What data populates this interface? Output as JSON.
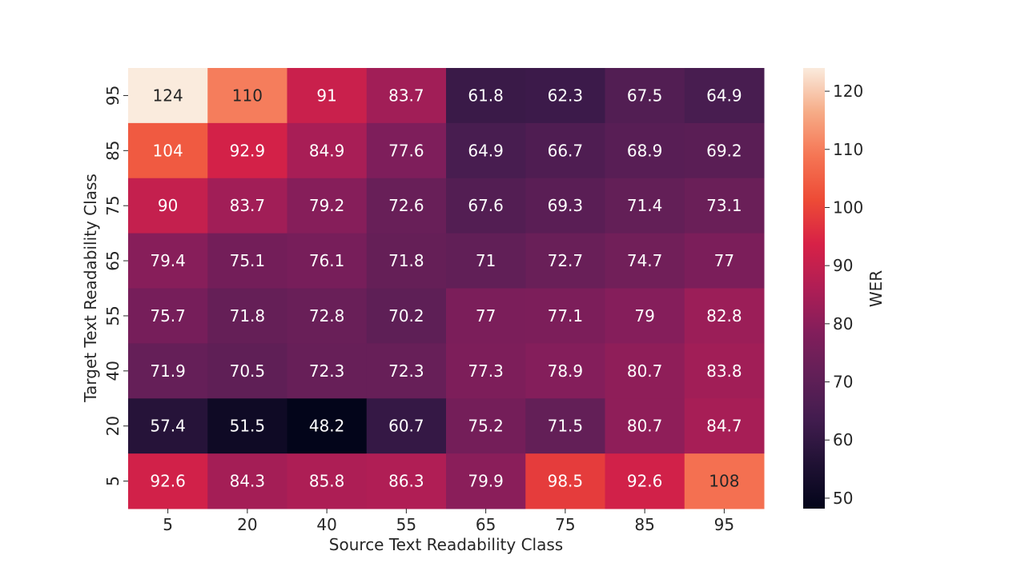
{
  "chart_data": {
    "type": "heatmap",
    "xlabel": "Source Text Readability Class",
    "ylabel": "Target Text Readability Class",
    "x_categories": [
      "5",
      "20",
      "40",
      "55",
      "65",
      "75",
      "85",
      "95"
    ],
    "y_categories": [
      "95",
      "85",
      "75",
      "65",
      "55",
      "40",
      "20",
      "5"
    ],
    "values": [
      [
        124,
        110,
        91,
        83.7,
        61.8,
        62.3,
        67.5,
        64.9
      ],
      [
        104,
        92.9,
        84.9,
        77.6,
        64.9,
        66.7,
        68.9,
        69.2
      ],
      [
        90,
        83.7,
        79.2,
        72.6,
        67.6,
        69.3,
        71.4,
        73.1
      ],
      [
        79.4,
        75.1,
        76.1,
        71.8,
        71,
        72.7,
        74.7,
        77
      ],
      [
        75.7,
        71.8,
        72.8,
        70.2,
        77,
        77.1,
        79,
        82.8
      ],
      [
        71.9,
        70.5,
        72.3,
        72.3,
        77.3,
        78.9,
        80.7,
        83.8
      ],
      [
        57.4,
        51.5,
        48.2,
        60.7,
        75.2,
        71.5,
        80.7,
        84.7
      ],
      [
        92.6,
        84.3,
        85.8,
        86.3,
        79.9,
        98.5,
        92.6,
        108
      ]
    ],
    "colorbar": {
      "label": "WER",
      "ticks": [
        "50",
        "60",
        "70",
        "80",
        "90",
        "100",
        "110",
        "120"
      ],
      "vmin": 48.2,
      "vmax": 124
    },
    "colormap": "rocket",
    "grid": false,
    "legend": "colorbar-right"
  }
}
